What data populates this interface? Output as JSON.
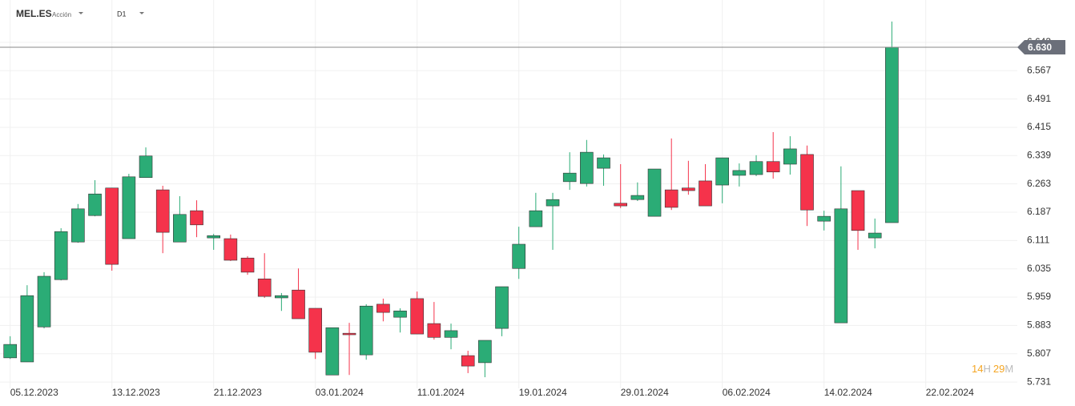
{
  "chart_data": {
    "type": "candlestick",
    "symbol": "MEL.ES",
    "instrument_type": "Acción",
    "timeframe": "D1",
    "countdown": {
      "hours": 14,
      "hours_unit": "H",
      "minutes": 29,
      "minutes_unit": "M"
    },
    "up_color": "#2bac76",
    "down_color": "#f5334b",
    "open": [
      5.796,
      5.785,
      5.879,
      6.006,
      6.107,
      6.178,
      6.252,
      6.116,
      6.28,
      6.247,
      6.107,
      6.191,
      6.118,
      6.116,
      6.064,
      6.008,
      5.957,
      5.978,
      5.929,
      5.75,
      5.862,
      5.804,
      5.94,
      5.905,
      5.955,
      5.888,
      5.851,
      5.802,
      5.783,
      5.875,
      6.036,
      6.148,
      6.204,
      6.269,
      6.264,
      6.305,
      6.211,
      6.221,
      6.176,
      6.247,
      6.252,
      6.271,
      6.26,
      6.286,
      6.288,
      6.323,
      6.316,
      6.342,
      6.163,
      5.89,
      6.245,
      6.118,
      6.159
    ],
    "high": [
      5.854,
      5.991,
      6.026,
      6.144,
      6.209,
      6.273,
      6.252,
      6.29,
      6.361,
      6.258,
      6.23,
      6.219,
      6.129,
      6.127,
      6.069,
      6.077,
      5.97,
      6.036,
      5.929,
      5.877,
      5.89,
      5.94,
      5.955,
      5.929,
      5.974,
      5.946,
      5.888,
      5.815,
      5.843,
      5.987,
      6.148,
      6.239,
      6.239,
      6.348,
      6.381,
      6.342,
      6.316,
      6.267,
      6.303,
      6.385,
      6.325,
      6.316,
      6.333,
      6.318,
      6.34,
      6.402,
      6.391,
      6.366,
      6.191,
      6.31,
      6.245,
      6.17,
      6.699
    ],
    "low": [
      5.793,
      5.785,
      5.875,
      6.004,
      6.105,
      6.176,
      6.03,
      6.116,
      6.28,
      6.077,
      6.107,
      6.12,
      6.086,
      6.056,
      6.019,
      5.957,
      5.922,
      5.901,
      5.793,
      5.75,
      5.75,
      5.791,
      5.894,
      5.864,
      5.86,
      5.845,
      5.819,
      5.755,
      5.744,
      5.854,
      6.008,
      6.148,
      6.086,
      6.247,
      6.256,
      6.258,
      6.198,
      6.217,
      6.176,
      6.193,
      6.234,
      6.204,
      6.211,
      6.256,
      6.284,
      6.277,
      6.288,
      6.15,
      6.138,
      5.89,
      6.086,
      6.09,
      6.159
    ],
    "close": [
      5.832,
      5.963,
      6.015,
      6.135,
      6.196,
      6.236,
      6.047,
      6.282,
      6.338,
      6.133,
      6.181,
      6.153,
      6.124,
      6.058,
      6.026,
      5.961,
      5.963,
      5.901,
      5.811,
      5.877,
      5.858,
      5.935,
      5.918,
      5.922,
      5.86,
      5.851,
      5.869,
      5.774,
      5.843,
      5.987,
      6.101,
      6.191,
      6.221,
      6.292,
      6.348,
      6.333,
      6.204,
      6.232,
      6.303,
      6.2,
      6.245,
      6.204,
      6.333,
      6.299,
      6.323,
      6.295,
      6.357,
      6.193,
      6.176,
      6.196,
      6.138,
      6.131,
      6.63
    ],
    "last_price": {
      "value": 6.63,
      "label": "6.630"
    },
    "ylim": [
      5.714,
      6.703
    ],
    "yticks": [
      5.731,
      5.807,
      5.883,
      5.959,
      6.035,
      6.111,
      6.187,
      6.263,
      6.339,
      6.415,
      6.491,
      6.567,
      6.643
    ],
    "xlim": [
      -0.6,
      59.4
    ],
    "xticks": [
      {
        "value": 0,
        "label": "05.12.2023"
      },
      {
        "value": 6,
        "label": "13.12.2023"
      },
      {
        "value": 12,
        "label": "21.12.2023"
      },
      {
        "value": 18,
        "label": "03.01.2024"
      },
      {
        "value": 24,
        "label": "11.01.2024"
      },
      {
        "value": 30,
        "label": "19.01.2024"
      },
      {
        "value": 36,
        "label": "29.01.2024"
      },
      {
        "value": 42,
        "label": "06.02.2024"
      },
      {
        "value": 48,
        "label": "14.02.2024"
      },
      {
        "value": 54,
        "label": "22.02.2024"
      }
    ],
    "grid": true
  }
}
